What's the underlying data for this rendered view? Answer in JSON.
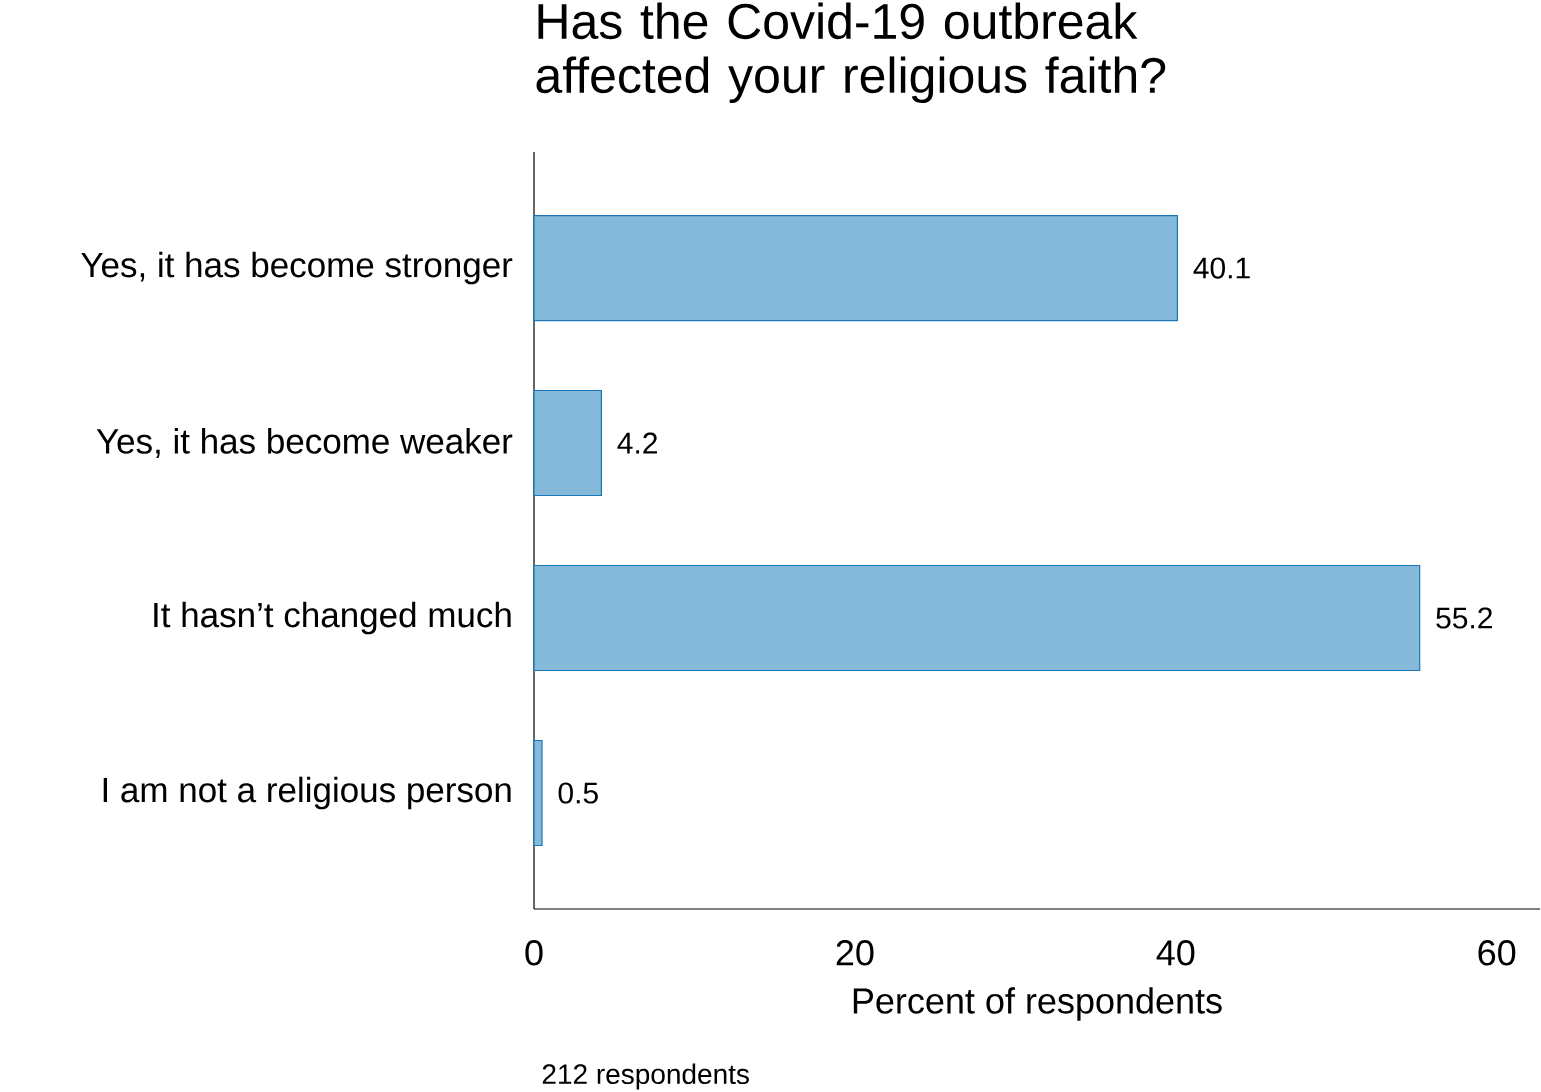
{
  "chart_data": {
    "type": "bar",
    "orientation": "horizontal",
    "title": "Has the Covid-19 outbreak affected your religious faith?",
    "categories": [
      "Yes, it has become stronger",
      "Yes, it has become weaker",
      "It hasn’t changed much",
      "I am not a religious person"
    ],
    "values": [
      40.1,
      4.2,
      55.2,
      0.5
    ],
    "color": "#84b9d9",
    "data_labels": true,
    "xlim": [
      0,
      62.7
    ],
    "xticks": [
      0,
      20,
      40,
      60
    ],
    "xlabel": "Percent of respondents",
    "annotations": [
      "212 respondents"
    ],
    "grid": false
  }
}
